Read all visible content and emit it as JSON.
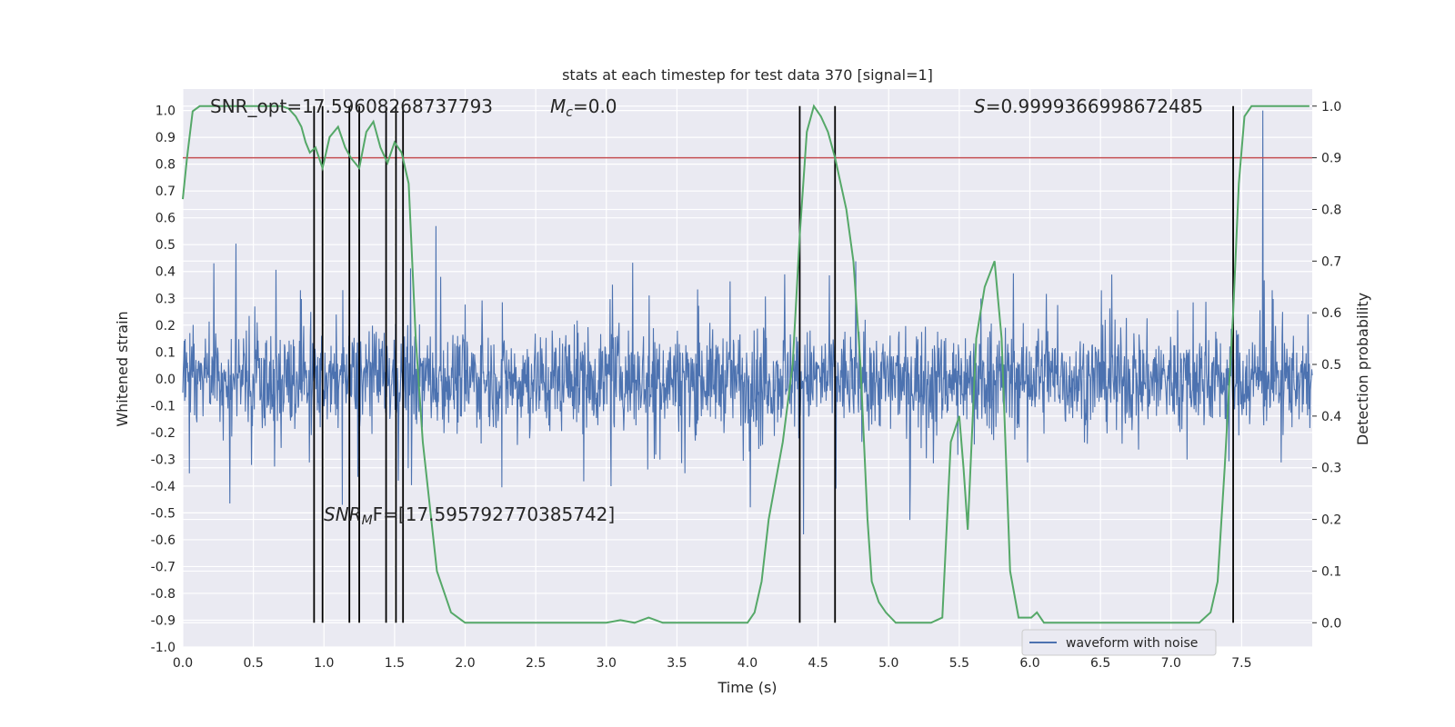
{
  "chart_data": {
    "type": "line",
    "title": "stats at each timestep for test data 370 [signal=1]",
    "xlabel": "Time (s)",
    "ylabel_left": "Whitened strain",
    "ylabel_right": "Detection probability",
    "xlim": [
      0.0,
      8.0
    ],
    "ylim_left": [
      -1.0,
      1.08
    ],
    "ylim_right": [
      -0.047,
      1.033
    ],
    "x_ticks": [
      "0.0",
      "0.5",
      "1.0",
      "1.5",
      "2.0",
      "2.5",
      "3.0",
      "3.5",
      "4.0",
      "4.5",
      "5.0",
      "5.5",
      "6.0",
      "6.5",
      "7.0",
      "7.5"
    ],
    "y_left_ticks": [
      "-1.0",
      "-0.9",
      "-0.8",
      "-0.7",
      "-0.6",
      "-0.5",
      "-0.4",
      "-0.3",
      "-0.2",
      "-0.1",
      "0.0",
      "0.1",
      "0.2",
      "0.3",
      "0.4",
      "0.5",
      "0.6",
      "0.7",
      "0.8",
      "0.9",
      "1.0"
    ],
    "y_right_ticks": [
      "0.0",
      "0.1",
      "0.2",
      "0.3",
      "0.4",
      "0.5",
      "0.6",
      "0.7",
      "0.8",
      "0.9",
      "1.0"
    ],
    "threshold": 0.9,
    "detection_lines_x": [
      0.93,
      0.99,
      1.18,
      1.25,
      1.44,
      1.51,
      1.56,
      4.37,
      4.62,
      7.44
    ],
    "series": [
      {
        "name": "waveform with noise",
        "color": "#4c72b0",
        "note": "whitened noisy strain, dense oscillation ~±0.4 with spikes to ~±0.8, max 1.0 near t=7.65"
      },
      {
        "name": "detection probability",
        "color": "#55a868",
        "axis": "right",
        "x": [
          0.0,
          0.03,
          0.07,
          0.12,
          0.2,
          0.4,
          0.6,
          0.7,
          0.75,
          0.8,
          0.84,
          0.87,
          0.9,
          0.94,
          0.99,
          1.04,
          1.1,
          1.15,
          1.19,
          1.25,
          1.3,
          1.35,
          1.4,
          1.45,
          1.5,
          1.55,
          1.6,
          1.65,
          1.7,
          1.8,
          1.9,
          2.0,
          2.2,
          2.5,
          2.8,
          3.0,
          3.1,
          3.2,
          3.3,
          3.4,
          3.5,
          3.8,
          4.0,
          4.05,
          4.1,
          4.15,
          4.25,
          4.32,
          4.37,
          4.42,
          4.47,
          4.52,
          4.57,
          4.62,
          4.7,
          4.75,
          4.8,
          4.85,
          4.88,
          4.93,
          4.98,
          5.05,
          5.1,
          5.2,
          5.3,
          5.38,
          5.44,
          5.5,
          5.53,
          5.56,
          5.62,
          5.68,
          5.75,
          5.8,
          5.86,
          5.92,
          5.97,
          6.01,
          6.05,
          6.1,
          6.2,
          6.5,
          7.0,
          7.2,
          7.28,
          7.33,
          7.38,
          7.44,
          7.48,
          7.52,
          7.57,
          7.65,
          7.8,
          7.98
        ],
        "values": [
          0.82,
          0.9,
          0.99,
          1.0,
          1.0,
          1.0,
          1.0,
          1.0,
          0.995,
          0.98,
          0.96,
          0.93,
          0.91,
          0.92,
          0.88,
          0.94,
          0.96,
          0.92,
          0.9,
          0.88,
          0.95,
          0.97,
          0.92,
          0.89,
          0.93,
          0.91,
          0.85,
          0.55,
          0.35,
          0.1,
          0.02,
          0.0,
          0.0,
          0.0,
          0.0,
          0.0,
          0.005,
          0.0,
          0.01,
          0.0,
          0.0,
          0.0,
          0.0,
          0.02,
          0.08,
          0.2,
          0.35,
          0.5,
          0.75,
          0.95,
          1.0,
          0.98,
          0.95,
          0.9,
          0.8,
          0.7,
          0.5,
          0.2,
          0.08,
          0.04,
          0.02,
          0.0,
          0.0,
          0.0,
          0.0,
          0.01,
          0.35,
          0.4,
          0.3,
          0.18,
          0.55,
          0.65,
          0.7,
          0.55,
          0.1,
          0.01,
          0.01,
          0.01,
          0.02,
          0.0,
          0.0,
          0.0,
          0.0,
          0.0,
          0.02,
          0.08,
          0.3,
          0.6,
          0.85,
          0.98,
          1.0,
          1.0,
          1.0,
          1.0
        ]
      }
    ],
    "legend": {
      "label": "waveform with noise",
      "placement": "lower-right"
    },
    "annotations": {
      "snr_opt": "SNR_opt=17.59608268737793",
      "mc_symbol": "M",
      "mc_sub": "c",
      "mc_value": "=0.0",
      "s_symbol": "S",
      "s_value": "=0.9999366998672485",
      "snr_mf_prefix": "SNR",
      "snr_mf_sub": "M",
      "snr_mf_rest": "F=[17.595792770385742]"
    }
  }
}
